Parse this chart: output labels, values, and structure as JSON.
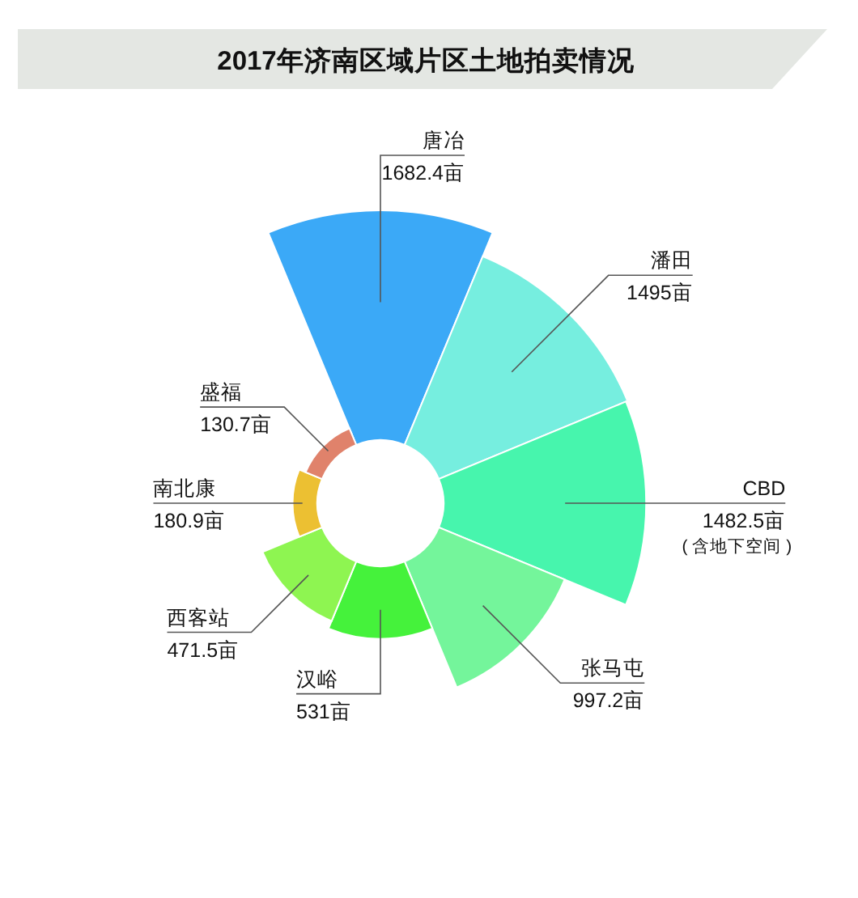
{
  "chart_data": {
    "type": "other",
    "title": "2017年济南区域片区土地拍卖情况",
    "categories": [
      "唐冶",
      "潘田",
      "CBD",
      "张马屯",
      "汉峪",
      "西客站",
      "南北康",
      "盛福"
    ],
    "values": [
      1682.4,
      1495,
      1482.5,
      997.2,
      531,
      471.5,
      180.9,
      130.7
    ],
    "colors": [
      "#3ba9f7",
      "#76eedf",
      "#47f5ad",
      "#74f59b",
      "#45f23b",
      "#8ef551",
      "#ecc032",
      "#e0826b"
    ],
    "value_labels": [
      "1682.4亩",
      "1495亩",
      "1482.5亩",
      "997.2亩",
      "531亩",
      "471.5亩",
      "180.9亩",
      "130.7亩"
    ],
    "annotations": [
      {
        "text": "( 含地下空间 )",
        "x": "CBD"
      }
    ]
  }
}
